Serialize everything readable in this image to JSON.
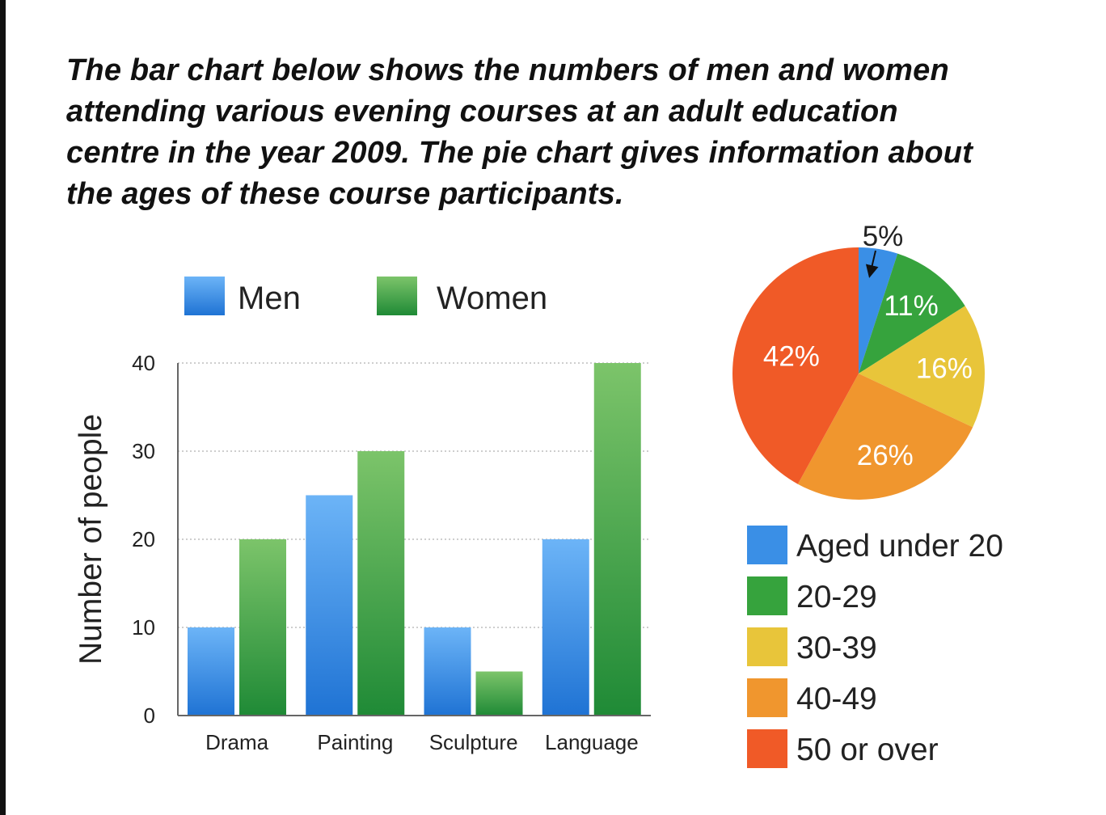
{
  "heading": {
    "lines": [
      "The bar chart below shows the numbers of men and women",
      "attending various evening courses at an adult education",
      "centre in the year 2009. The pie chart gives information about",
      "the ages of these course participants."
    ]
  },
  "chart_data": [
    {
      "type": "bar",
      "categories": [
        "Drama",
        "Painting",
        "Sculpture",
        "Language"
      ],
      "series": [
        {
          "name": "Men",
          "values": [
            10,
            25,
            10,
            20
          ],
          "color": "#3a8fe6"
        },
        {
          "name": "Women",
          "values": [
            20,
            30,
            5,
            40
          ],
          "color": "#3aa043"
        }
      ],
      "xlabel": "",
      "ylabel": "Number of people",
      "ylim": [
        0,
        40
      ],
      "yticks": [
        0,
        10,
        20,
        30,
        40
      ],
      "grid": true,
      "legend": "top"
    },
    {
      "type": "pie",
      "slices": [
        {
          "name": "Aged under 20",
          "value": 5,
          "label": "5%",
          "color": "#3a8fe6"
        },
        {
          "name": "20-29",
          "value": 11,
          "label": "11%",
          "color": "#36a33d"
        },
        {
          "name": "30-39",
          "value": 16,
          "label": "16%",
          "color": "#e8c53a"
        },
        {
          "name": "40-49",
          "value": 26,
          "label": "26%",
          "color": "#f0962e"
        },
        {
          "name": "50 or over",
          "value": 42,
          "label": "42%",
          "color": "#f05a27"
        }
      ],
      "legend": "bottom"
    }
  ]
}
